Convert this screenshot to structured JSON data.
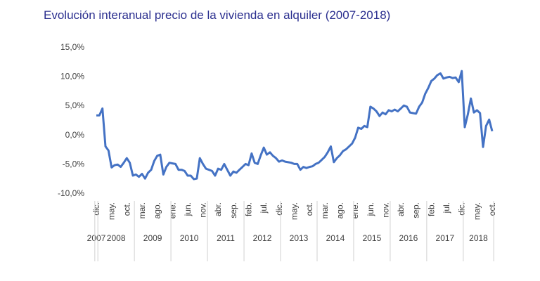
{
  "chart_data": {
    "type": "line",
    "title": "Evolución interanual precio de la vivienda en alquiler (2007-2018)",
    "categories": [
      "dic.",
      null,
      null,
      null,
      null,
      "may.",
      null,
      null,
      null,
      null,
      "oct.",
      null,
      null,
      null,
      null,
      "mar.",
      null,
      null,
      null,
      null,
      "ago.",
      null,
      null,
      null,
      null,
      "ene.",
      null,
      null,
      null,
      null,
      "jun.",
      null,
      null,
      null,
      null,
      "nov.",
      null,
      null,
      null,
      null,
      "abr.",
      null,
      null,
      null,
      null,
      "sep.",
      null,
      null,
      null,
      null,
      "feb.",
      null,
      null,
      null,
      null,
      "jul.",
      null,
      null,
      null,
      null,
      "dic.",
      null,
      null,
      null,
      null,
      "may.",
      null,
      null,
      null,
      null,
      "oct.",
      null,
      null,
      null,
      null,
      "mar.",
      null,
      null,
      null,
      null,
      "ago.",
      null,
      null,
      null,
      null,
      "ene.",
      null,
      null,
      null,
      null,
      "jun.",
      null,
      null,
      null,
      null,
      "nov.",
      null,
      null,
      null,
      null,
      "abr.",
      null,
      null,
      null,
      null,
      "sep.",
      null,
      null,
      null,
      null,
      "feb.",
      null,
      null,
      null,
      null,
      "jul.",
      null,
      null,
      null,
      null,
      "dic.",
      null,
      null,
      null,
      null,
      "may.",
      null,
      null,
      null,
      null,
      "oct."
    ],
    "years": [
      "2007",
      "2008",
      "2009",
      "2010",
      "2011",
      "2012",
      "2013",
      "2014",
      "2015",
      "2016",
      "2017",
      "2018"
    ],
    "series": [
      {
        "color": "#4472c4",
        "values": [
          3.3,
          3.3,
          4.5,
          -2,
          -2.7,
          -5.6,
          -5.2,
          -5.1,
          -5.5,
          -4.8,
          -4.0,
          -4.8,
          -7.0,
          -6.8,
          -7.2,
          -6.7,
          -7.5,
          -6.5,
          -6.0,
          -4.5,
          -3.6,
          -3.4,
          -6.8,
          -5.5,
          -4.8,
          -4.9,
          -5.0,
          -6.0,
          -6.0,
          -6.2,
          -7.0,
          -7.0,
          -7.6,
          -7.5,
          -4.0,
          -5.0,
          -5.8,
          -6.0,
          -6.2,
          -7.0,
          -5.8,
          -6.0,
          -5.0,
          -6.0,
          -7.0,
          -6.3,
          -6.5,
          -6.0,
          -5.5,
          -5.0,
          -5.2,
          -3.2,
          -4.8,
          -5.0,
          -3.5,
          -2.2,
          -3.4,
          -3.0,
          -3.6,
          -4.0,
          -4.6,
          -4.4,
          -4.6,
          -4.7,
          -4.8,
          -5.0,
          -5.0,
          -6.0,
          -5.5,
          -5.7,
          -5.5,
          -5.4,
          -5.0,
          -4.8,
          -4.3,
          -3.8,
          -3.0,
          -2.0,
          -4.7,
          -4.0,
          -3.5,
          -2.8,
          -2.5,
          -2.0,
          -1.5,
          -0.5,
          1.2,
          1.0,
          1.5,
          1.3,
          4.8,
          4.5,
          4.0,
          3.2,
          3.8,
          3.5,
          4.2,
          4.0,
          4.3,
          4.0,
          4.5,
          5.0,
          4.8,
          3.8,
          3.7,
          3.6,
          4.8,
          5.5,
          7.0,
          8.0,
          9.2,
          9.6,
          10.2,
          10.5,
          9.6,
          9.8,
          9.9,
          9.7,
          9.8,
          9.0,
          10.9,
          1.3,
          3.5,
          6.2,
          3.8,
          4.2,
          3.7,
          -2.1,
          1.5,
          2.6,
          0.6
        ]
      }
    ],
    "ylim": [
      -10,
      15
    ],
    "yticks": [
      {
        "value": -10,
        "label": "-10,0%"
      },
      {
        "value": -5,
        "label": "-5,0%"
      },
      {
        "value": 0,
        "label": "0,0%"
      },
      {
        "value": 5,
        "label": "5,0%"
      },
      {
        "value": 10,
        "label": "10,0%"
      },
      {
        "value": 15,
        "label": "15,0%"
      }
    ]
  }
}
